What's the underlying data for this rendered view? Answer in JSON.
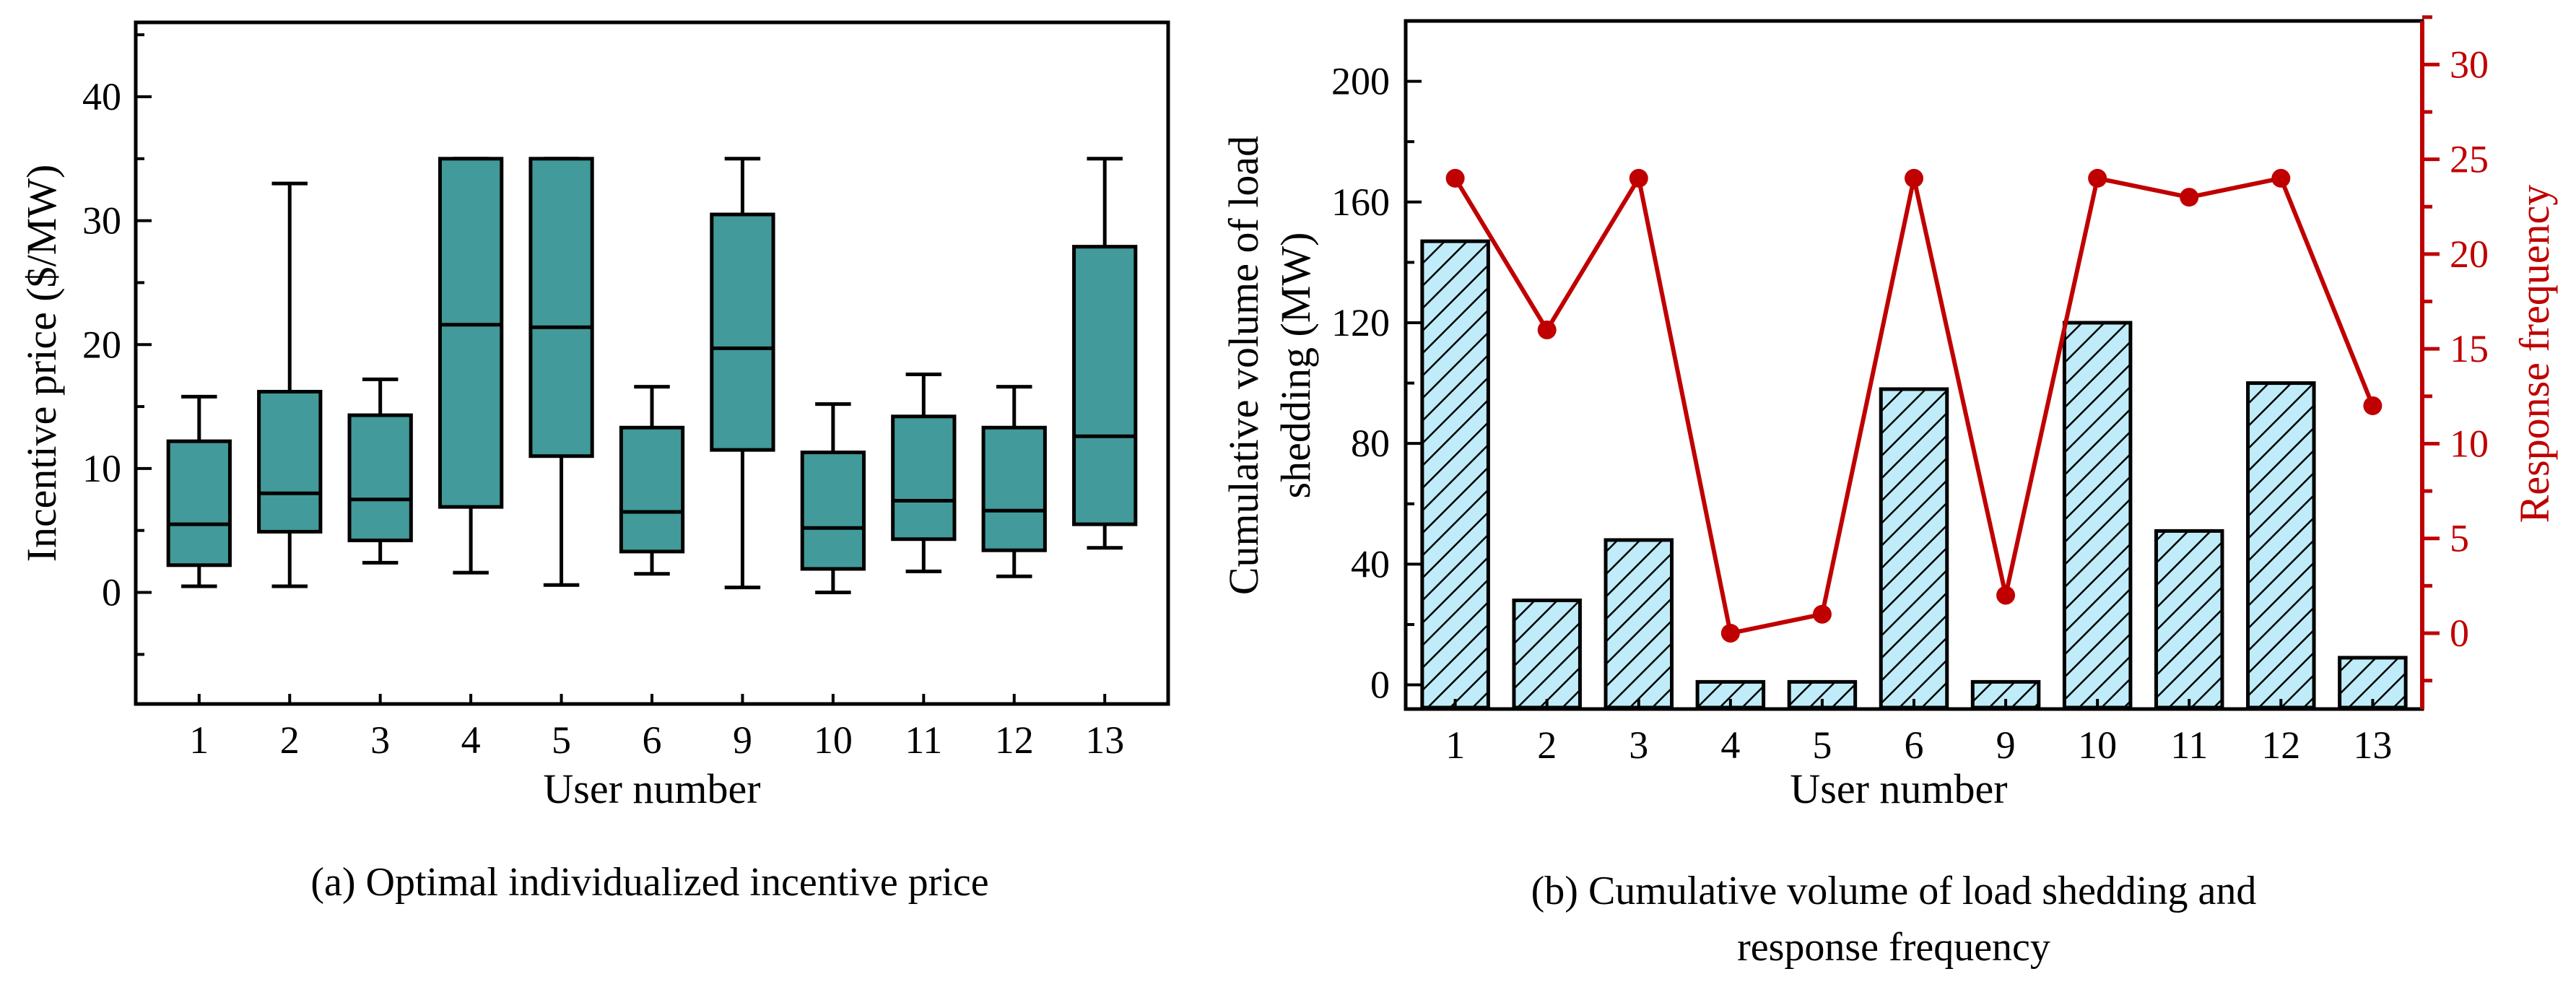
{
  "chart_data": [
    {
      "type": "box",
      "caption": "(a) Optimal individualized incentive price",
      "xlabel": "User number",
      "ylabel": "Incentive price ($/MW)",
      "ylim": [
        -9,
        46
      ],
      "yticks": [
        0,
        10,
        20,
        30,
        40
      ],
      "categories": [
        "1",
        "2",
        "3",
        "4",
        "5",
        "6",
        "9",
        "10",
        "11",
        "12",
        "13"
      ],
      "boxes": [
        {
          "min": 0.5,
          "q1": 2.2,
          "median": 5.5,
          "q3": 12.2,
          "max": 15.8
        },
        {
          "min": 0.5,
          "q1": 4.9,
          "median": 8.0,
          "q3": 16.2,
          "max": 33.0
        },
        {
          "min": 2.4,
          "q1": 4.2,
          "median": 7.5,
          "q3": 14.3,
          "max": 17.2
        },
        {
          "min": 1.6,
          "q1": 6.9,
          "median": 21.6,
          "q3": 35.0,
          "max": 35.0
        },
        {
          "min": 0.6,
          "q1": 11.0,
          "median": 21.4,
          "q3": 35.0,
          "max": 35.0
        },
        {
          "min": 1.5,
          "q1": 3.3,
          "median": 6.5,
          "q3": 13.3,
          "max": 16.6
        },
        {
          "min": 0.4,
          "q1": 11.5,
          "median": 19.7,
          "q3": 30.5,
          "max": 35.0
        },
        {
          "min": 0.0,
          "q1": 1.9,
          "median": 5.2,
          "q3": 11.3,
          "max": 15.2
        },
        {
          "min": 1.7,
          "q1": 4.3,
          "median": 7.4,
          "q3": 14.2,
          "max": 17.6
        },
        {
          "min": 1.3,
          "q1": 3.4,
          "median": 6.6,
          "q3": 13.3,
          "max": 16.6
        },
        {
          "min": 3.6,
          "q1": 5.5,
          "median": 12.6,
          "q3": 27.9,
          "max": 35.0
        }
      ],
      "colors": {
        "box_fill": "#429a9a",
        "stroke": "#000000"
      }
    },
    {
      "type": "bar+line",
      "caption_lines": [
        "(b) Cumulative volume of load shedding and",
        "response frequency"
      ],
      "xlabel": "User number",
      "ylabel_lines": [
        "Cumulative volume of load",
        "shedding (MW)"
      ],
      "y2label": "Response frequency",
      "ylim": [
        -8,
        220
      ],
      "yticks": [
        0,
        40,
        80,
        120,
        160,
        200
      ],
      "y2lim": [
        -4,
        32.3
      ],
      "y2ticks": [
        0,
        5,
        10,
        15,
        20,
        25,
        30
      ],
      "categories": [
        "1",
        "2",
        "3",
        "4",
        "5",
        "6",
        "9",
        "10",
        "11",
        "12",
        "13"
      ],
      "series": [
        {
          "values": [
            147,
            28,
            48,
            1,
            1,
            98,
            1,
            120,
            51,
            100,
            9
          ]
        },
        {
          "values": [
            24,
            16,
            24,
            0,
            1,
            24,
            2,
            24,
            23,
            24,
            12
          ]
        }
      ],
      "colors": {
        "bar_fill": "#bfecf8",
        "hatch": "#000000",
        "line": "#c00000"
      }
    }
  ]
}
